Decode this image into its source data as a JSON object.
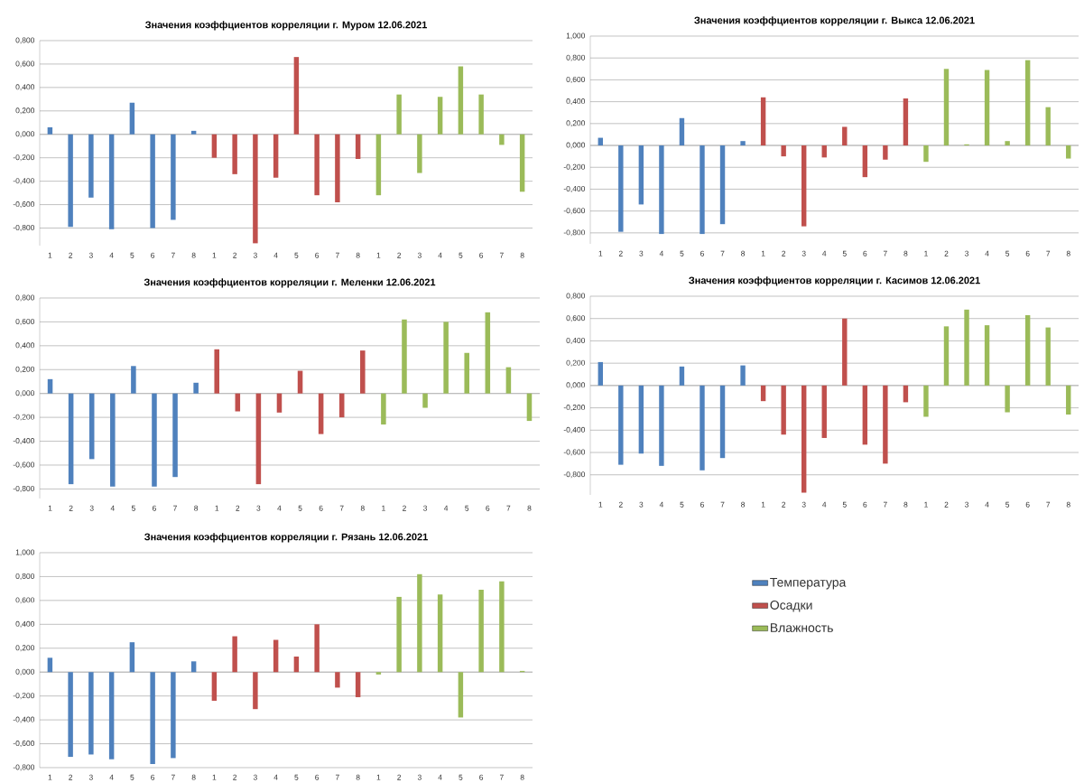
{
  "chart_data": [
    {
      "type": "bar",
      "title": "Значения коэффциентов корреляции г. Муром 12.06.2021",
      "categories": [
        "1",
        "2",
        "3",
        "4",
        "5",
        "6",
        "7",
        "8",
        "1",
        "2",
        "3",
        "4",
        "5",
        "6",
        "7",
        "8",
        "1",
        "2",
        "3",
        "4",
        "5",
        "6",
        "7",
        "8"
      ],
      "ylim": [
        -0.95,
        0.8
      ],
      "yticks": [
        {
          "value": -0.8,
          "label": "-0,800"
        },
        {
          "value": -0.6,
          "label": "-0,600"
        },
        {
          "value": -0.4,
          "label": "-0,400"
        },
        {
          "value": -0.2,
          "label": "-0,200"
        },
        {
          "value": 0,
          "label": "0,000"
        },
        {
          "value": 0.2,
          "label": "0,200"
        },
        {
          "value": 0.4,
          "label": "0,400"
        },
        {
          "value": 0.6,
          "label": "0,600"
        },
        {
          "value": 0.8,
          "label": "0,800"
        }
      ],
      "grid": "y",
      "series": [
        {
          "color": "#4f81bd",
          "values": [
            0.06,
            -0.79,
            -0.54,
            -0.81,
            0.27,
            -0.8,
            -0.73,
            0.03,
            null,
            null,
            null,
            null,
            null,
            null,
            null,
            null,
            null,
            null,
            null,
            null,
            null,
            null,
            null,
            null
          ]
        },
        {
          "color": "#c0504d",
          "values": [
            null,
            null,
            null,
            null,
            null,
            null,
            null,
            null,
            -0.2,
            -0.34,
            -0.93,
            -0.37,
            0.66,
            -0.52,
            -0.58,
            -0.21,
            null,
            null,
            null,
            null,
            null,
            null,
            null,
            null
          ]
        },
        {
          "color": "#9bbb59",
          "values": [
            null,
            null,
            null,
            null,
            null,
            null,
            null,
            null,
            null,
            null,
            null,
            null,
            null,
            null,
            null,
            null,
            -0.52,
            0.34,
            -0.33,
            0.32,
            0.58,
            0.34,
            -0.09,
            -0.49
          ]
        }
      ]
    },
    {
      "type": "bar",
      "title": "Значения коэффциентов корреляции г. Выкса 12.06.2021",
      "categories": [
        "1",
        "2",
        "3",
        "4",
        "5",
        "6",
        "7",
        "8",
        "1",
        "2",
        "3",
        "4",
        "5",
        "6",
        "7",
        "8",
        "1",
        "2",
        "3",
        "4",
        "5",
        "6",
        "7",
        "8"
      ],
      "ylim": [
        -0.9,
        1.0
      ],
      "yticks": [
        {
          "value": -0.8,
          "label": "-0,800"
        },
        {
          "value": -0.6,
          "label": "-0,600"
        },
        {
          "value": -0.4,
          "label": "-0,400"
        },
        {
          "value": -0.2,
          "label": "-0,200"
        },
        {
          "value": 0,
          "label": "0,000"
        },
        {
          "value": 0.2,
          "label": "0,200"
        },
        {
          "value": 0.4,
          "label": "0,400"
        },
        {
          "value": 0.6,
          "label": "0,600"
        },
        {
          "value": 0.8,
          "label": "0,800"
        },
        {
          "value": 1.0,
          "label": "1,000"
        }
      ],
      "grid": "y",
      "series": [
        {
          "color": "#4f81bd",
          "values": [
            0.07,
            -0.79,
            -0.54,
            -0.81,
            0.25,
            -0.81,
            -0.72,
            0.04,
            null,
            null,
            null,
            null,
            null,
            null,
            null,
            null,
            null,
            null,
            null,
            null,
            null,
            null,
            null,
            null
          ]
        },
        {
          "color": "#c0504d",
          "values": [
            null,
            null,
            null,
            null,
            null,
            null,
            null,
            null,
            0.44,
            -0.1,
            -0.74,
            -0.11,
            0.17,
            -0.29,
            -0.13,
            0.43,
            null,
            null,
            null,
            null,
            null,
            null,
            null,
            null
          ]
        },
        {
          "color": "#9bbb59",
          "values": [
            null,
            null,
            null,
            null,
            null,
            null,
            null,
            null,
            null,
            null,
            null,
            null,
            null,
            null,
            null,
            null,
            -0.15,
            0.7,
            0.01,
            0.69,
            0.04,
            0.78,
            0.35,
            -0.12
          ]
        }
      ]
    },
    {
      "type": "bar",
      "title": "Значения коэффциентов корреляции г. Меленки 12.06.2021",
      "categories": [
        "1",
        "2",
        "3",
        "4",
        "5",
        "6",
        "7",
        "8",
        "1",
        "2",
        "3",
        "4",
        "5",
        "6",
        "7",
        "8",
        "1",
        "2",
        "3",
        "4",
        "5",
        "6",
        "7",
        "8"
      ],
      "ylim": [
        -0.88,
        0.8
      ],
      "yticks": [
        {
          "value": -0.8,
          "label": "-0,800"
        },
        {
          "value": -0.6,
          "label": "-0,600"
        },
        {
          "value": -0.4,
          "label": "-0,400"
        },
        {
          "value": -0.2,
          "label": "-0,200"
        },
        {
          "value": 0,
          "label": "0,000"
        },
        {
          "value": 0.2,
          "label": "0,200"
        },
        {
          "value": 0.4,
          "label": "0,400"
        },
        {
          "value": 0.6,
          "label": "0,600"
        },
        {
          "value": 0.8,
          "label": "0,800"
        }
      ],
      "grid": "y",
      "series": [
        {
          "color": "#4f81bd",
          "values": [
            0.12,
            -0.76,
            -0.55,
            -0.78,
            0.23,
            -0.78,
            -0.7,
            0.09,
            null,
            null,
            null,
            null,
            null,
            null,
            null,
            null,
            null,
            null,
            null,
            null,
            null,
            null,
            null,
            null
          ]
        },
        {
          "color": "#c0504d",
          "values": [
            null,
            null,
            null,
            null,
            null,
            null,
            null,
            null,
            0.37,
            -0.15,
            -0.76,
            -0.16,
            0.19,
            -0.34,
            -0.2,
            0.36,
            null,
            null,
            null,
            null,
            null,
            null,
            null,
            null
          ]
        },
        {
          "color": "#9bbb59",
          "values": [
            null,
            null,
            null,
            null,
            null,
            null,
            null,
            null,
            null,
            null,
            null,
            null,
            null,
            null,
            null,
            null,
            -0.26,
            0.62,
            -0.12,
            0.6,
            0.34,
            0.68,
            0.22,
            -0.23
          ]
        }
      ]
    },
    {
      "type": "bar",
      "title": "Значения коэффциентов корреляции г. Касимов 12.06.2021",
      "categories": [
        "1",
        "2",
        "3",
        "4",
        "5",
        "6",
        "7",
        "8",
        "1",
        "2",
        "3",
        "4",
        "5",
        "6",
        "7",
        "8",
        "1",
        "2",
        "3",
        "4",
        "5",
        "6",
        "7",
        "8"
      ],
      "ylim": [
        -0.98,
        0.8
      ],
      "yticks": [
        {
          "value": -0.8,
          "label": "-0,800"
        },
        {
          "value": -0.6,
          "label": "-0,600"
        },
        {
          "value": -0.4,
          "label": "-0,400"
        },
        {
          "value": -0.2,
          "label": "-0,200"
        },
        {
          "value": 0,
          "label": "0,000"
        },
        {
          "value": 0.2,
          "label": "0,200"
        },
        {
          "value": 0.4,
          "label": "0,400"
        },
        {
          "value": 0.6,
          "label": "0,600"
        },
        {
          "value": 0.8,
          "label": "0,800"
        }
      ],
      "grid": "y",
      "series": [
        {
          "color": "#4f81bd",
          "values": [
            0.21,
            -0.71,
            -0.61,
            -0.72,
            0.17,
            -0.76,
            -0.65,
            0.18,
            null,
            null,
            null,
            null,
            null,
            null,
            null,
            null,
            null,
            null,
            null,
            null,
            null,
            null,
            null,
            null
          ]
        },
        {
          "color": "#c0504d",
          "values": [
            null,
            null,
            null,
            null,
            null,
            null,
            null,
            null,
            -0.14,
            -0.44,
            -0.96,
            -0.47,
            0.6,
            -0.53,
            -0.7,
            -0.15,
            null,
            null,
            null,
            null,
            null,
            null,
            null,
            null
          ]
        },
        {
          "color": "#9bbb59",
          "values": [
            null,
            null,
            null,
            null,
            null,
            null,
            null,
            null,
            null,
            null,
            null,
            null,
            null,
            null,
            null,
            null,
            -0.28,
            0.53,
            0.68,
            0.54,
            -0.24,
            0.63,
            0.52,
            -0.26
          ]
        }
      ]
    },
    {
      "type": "bar",
      "title": "Значения коэффциентов корреляции г. Рязань 12.06.2021",
      "categories": [
        "1",
        "2",
        "3",
        "4",
        "5",
        "6",
        "7",
        "8",
        "1",
        "2",
        "3",
        "4",
        "5",
        "6",
        "7",
        "8",
        "1",
        "2",
        "3",
        "4",
        "5",
        "6",
        "7",
        "8"
      ],
      "ylim": [
        -0.8,
        1.0
      ],
      "yticks": [
        {
          "value": -0.8,
          "label": "-0,800"
        },
        {
          "value": -0.6,
          "label": "-0,600"
        },
        {
          "value": -0.4,
          "label": "-0,400"
        },
        {
          "value": -0.2,
          "label": "-0,200"
        },
        {
          "value": 0,
          "label": "0,000"
        },
        {
          "value": 0.2,
          "label": "0,200"
        },
        {
          "value": 0.4,
          "label": "0,400"
        },
        {
          "value": 0.6,
          "label": "0,600"
        },
        {
          "value": 0.8,
          "label": "0,800"
        },
        {
          "value": 1.0,
          "label": "1,000"
        }
      ],
      "grid": "y",
      "legend": "right",
      "series": [
        {
          "name": "Температура",
          "color": "#4f81bd",
          "values": [
            0.12,
            -0.71,
            -0.69,
            -0.73,
            0.25,
            -0.77,
            -0.72,
            0.09,
            null,
            null,
            null,
            null,
            null,
            null,
            null,
            null,
            null,
            null,
            null,
            null,
            null,
            null,
            null,
            null
          ]
        },
        {
          "name": "Осадки",
          "color": "#c0504d",
          "values": [
            null,
            null,
            null,
            null,
            null,
            null,
            null,
            null,
            -0.24,
            0.3,
            -0.31,
            0.27,
            0.13,
            0.4,
            -0.13,
            -0.21,
            null,
            null,
            null,
            null,
            null,
            null,
            null,
            null
          ]
        },
        {
          "name": "Влажность",
          "color": "#9bbb59",
          "values": [
            null,
            null,
            null,
            null,
            null,
            null,
            null,
            null,
            null,
            null,
            null,
            null,
            null,
            null,
            null,
            null,
            -0.02,
            0.63,
            0.82,
            0.65,
            -0.38,
            0.69,
            0.76,
            0.01
          ]
        }
      ]
    }
  ]
}
